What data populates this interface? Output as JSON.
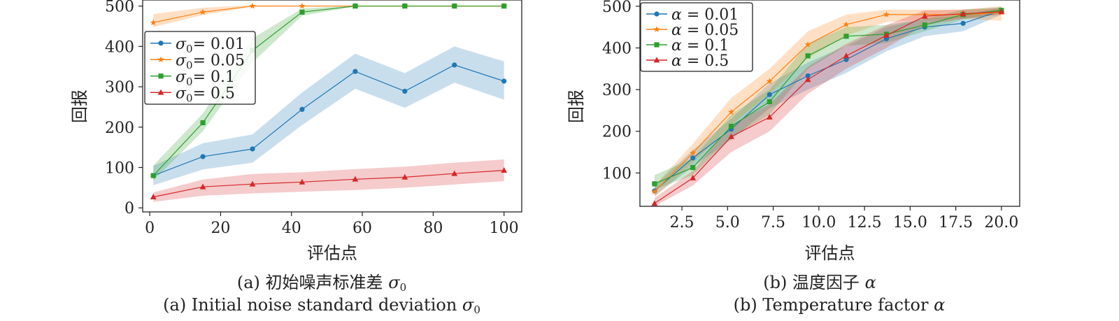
{
  "colors": {
    "blue": "#1f77b4",
    "orange": "#ff7f0e",
    "green": "#2ca02c",
    "red": "#d62728"
  },
  "chart_data": [
    {
      "type": "line",
      "ylabel": "回报",
      "xlabel": "评估点",
      "caption_cn": "(a) 初始噪声标准差",
      "caption_cn_symbol": "σ",
      "caption_cn_symbol_sub": "0",
      "caption_en": "(a) Initial noise standard deviation",
      "caption_en_symbol": "σ",
      "caption_en_symbol_sub": "0",
      "xlim": [
        -2,
        105
      ],
      "ylim": [
        -10,
        515
      ],
      "xticks": [
        0,
        20,
        40,
        60,
        80,
        100
      ],
      "yticks": [
        0,
        100,
        200,
        300,
        400,
        500
      ],
      "legend_position": "center-left",
      "series": [
        {
          "name": "σ0 = 0.01",
          "legend_sym": "σ",
          "legend_sub": "0",
          "legend_val": "= 0.01",
          "color": "blue",
          "marker": "circle",
          "x": [
            1,
            15,
            29,
            43,
            58,
            72,
            86,
            100
          ],
          "y": [
            80,
            127,
            146,
            244,
            338,
            289,
            354,
            314
          ],
          "lo": [
            56,
            95,
            112,
            205,
            295,
            248,
            310,
            268
          ],
          "hi": [
            104,
            160,
            182,
            286,
            382,
            334,
            400,
            363
          ]
        },
        {
          "name": "σ0 = 0.05",
          "legend_sym": "σ",
          "legend_sub": "0",
          "legend_val": "= 0.05",
          "color": "orange",
          "marker": "star",
          "x": [
            1,
            15,
            29,
            43,
            58,
            72,
            86,
            100
          ],
          "y": [
            459,
            485,
            500,
            500,
            500,
            500,
            500,
            500
          ],
          "lo": [
            448,
            478,
            498,
            499,
            499,
            499,
            499,
            499
          ],
          "hi": [
            480,
            496,
            502,
            501,
            501,
            501,
            501,
            501
          ]
        },
        {
          "name": "σ0 = 0.1",
          "legend_sym": "σ",
          "legend_sub": "0",
          "legend_val": "= 0.1",
          "color": "green",
          "marker": "square",
          "x": [
            1,
            15,
            29,
            43,
            58,
            72,
            86,
            100
          ],
          "y": [
            80,
            211,
            390,
            485,
            500,
            500,
            500,
            500
          ],
          "lo": [
            68,
            190,
            360,
            476,
            499,
            499,
            499,
            499
          ],
          "hi": [
            105,
            234,
            420,
            494,
            501,
            501,
            501,
            501
          ]
        },
        {
          "name": "σ0 = 0.5",
          "legend_sym": "σ",
          "legend_sub": "0",
          "legend_val": "= 0.5",
          "color": "red",
          "marker": "triangle",
          "x": [
            1,
            15,
            29,
            43,
            58,
            72,
            86,
            100
          ],
          "y": [
            27,
            52,
            59,
            64,
            71,
            76,
            85,
            93
          ],
          "lo": [
            15,
            30,
            36,
            40,
            44,
            50,
            58,
            66
          ],
          "hi": [
            38,
            70,
            84,
            88,
            96,
            102,
            112,
            120
          ]
        }
      ]
    },
    {
      "type": "line",
      "ylabel": "回报",
      "xlabel": "评估点",
      "caption_cn": "(b) 温度因子",
      "caption_cn_symbol": "α",
      "caption_cn_symbol_sub": "",
      "caption_en": "(b) Temperature factor",
      "caption_en_symbol": "α",
      "caption_en_symbol_sub": "",
      "xlim": [
        0.2,
        21.0
      ],
      "ylim": [
        20,
        515
      ],
      "xticks": [
        2.5,
        5.0,
        7.5,
        10.0,
        12.5,
        15.0,
        17.5,
        20.0
      ],
      "yticks": [
        100,
        200,
        300,
        400,
        500
      ],
      "legend_position": "top-left",
      "series": [
        {
          "name": "α = 0.01",
          "legend_sym": "α",
          "legend_sub": "",
          "legend_val": "= 0.01",
          "color": "blue",
          "marker": "circle",
          "x": [
            1.0,
            3.1,
            5.2,
            7.3,
            9.4,
            11.5,
            13.7,
            15.8,
            17.9,
            20.0
          ],
          "y": [
            57,
            136,
            205,
            288,
            333,
            372,
            422,
            450,
            459,
            490
          ],
          "lo": [
            45,
            115,
            180,
            255,
            300,
            340,
            392,
            428,
            440,
            480
          ],
          "hi": [
            70,
            155,
            230,
            315,
            365,
            405,
            450,
            470,
            478,
            498
          ]
        },
        {
          "name": "α = 0.05",
          "legend_sym": "α",
          "legend_sub": "",
          "legend_val": "= 0.05",
          "color": "orange",
          "marker": "star",
          "x": [
            1.0,
            3.1,
            5.2,
            7.3,
            9.4,
            11.5,
            13.7,
            15.8,
            17.9,
            20.0
          ],
          "y": [
            55,
            148,
            246,
            320,
            408,
            456,
            480,
            480,
            480,
            485
          ],
          "lo": [
            42,
            125,
            215,
            290,
            375,
            430,
            462,
            468,
            470,
            465
          ],
          "hi": [
            70,
            170,
            280,
            350,
            440,
            480,
            492,
            492,
            492,
            500
          ]
        },
        {
          "name": "α = 0.1",
          "legend_sym": "α",
          "legend_sub": "",
          "legend_val": "= 0.1",
          "color": "green",
          "marker": "square",
          "x": [
            1.0,
            3.1,
            5.2,
            7.3,
            9.4,
            11.5,
            13.7,
            15.8,
            17.9,
            20.0
          ],
          "y": [
            74,
            113,
            212,
            271,
            381,
            428,
            433,
            455,
            480,
            490
          ],
          "lo": [
            60,
            95,
            185,
            240,
            350,
            405,
            412,
            440,
            468,
            482
          ],
          "hi": [
            95,
            135,
            240,
            300,
            410,
            450,
            455,
            470,
            492,
            498
          ]
        },
        {
          "name": "α = 0.5",
          "legend_sym": "α",
          "legend_sub": "",
          "legend_val": "= 0.5",
          "color": "red",
          "marker": "triangle",
          "x": [
            1.0,
            3.1,
            5.2,
            7.3,
            9.4,
            11.5,
            13.7,
            15.8,
            17.9,
            20.0
          ],
          "y": [
            27,
            88,
            187,
            234,
            324,
            381,
            430,
            476,
            482,
            487
          ],
          "lo": [
            20,
            70,
            150,
            200,
            290,
            350,
            400,
            455,
            470,
            480
          ],
          "hi": [
            40,
            105,
            215,
            265,
            355,
            410,
            455,
            490,
            492,
            495
          ]
        }
      ]
    }
  ]
}
